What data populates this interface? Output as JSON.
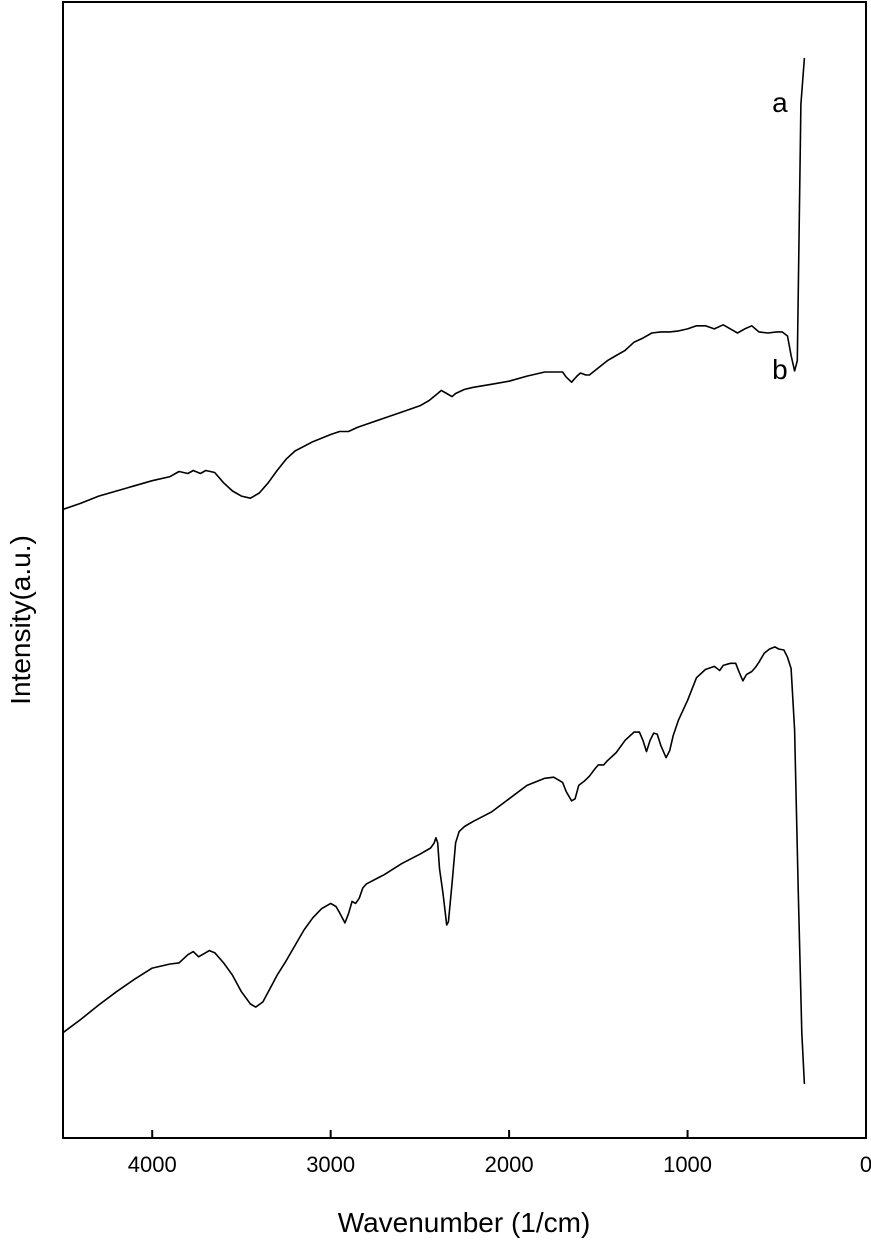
{
  "chart_data": {
    "type": "line",
    "title": "",
    "xlabel": "Wavenumber (1/cm)",
    "ylabel": "Intensity(a.u.)",
    "xlim": [
      4500,
      0
    ],
    "x_reversed": true,
    "ylim": [
      0,
      100
    ],
    "y_ticks_shown": false,
    "grid": false,
    "x_ticks": [
      4000,
      3000,
      2000,
      1000,
      0
    ],
    "x_tick_labels": [
      "4000",
      "3000",
      "2000",
      "1000",
      "0"
    ],
    "series": [
      {
        "name": "a",
        "label_at": [
          470,
          95.5
        ],
        "points": [
          [
            4500,
            56
          ],
          [
            4400,
            56.6
          ],
          [
            4300,
            57.3
          ],
          [
            4200,
            57.8
          ],
          [
            4100,
            58.3
          ],
          [
            4000,
            58.8
          ],
          [
            3900,
            59.2
          ],
          [
            3850,
            59.7
          ],
          [
            3800,
            59.5
          ],
          [
            3770,
            59.8
          ],
          [
            3730,
            59.5
          ],
          [
            3700,
            59.8
          ],
          [
            3650,
            59.6
          ],
          [
            3600,
            58.6
          ],
          [
            3550,
            57.8
          ],
          [
            3500,
            57.3
          ],
          [
            3450,
            57.1
          ],
          [
            3400,
            57.6
          ],
          [
            3350,
            58.6
          ],
          [
            3300,
            59.8
          ],
          [
            3250,
            60.9
          ],
          [
            3200,
            61.7
          ],
          [
            3100,
            62.6
          ],
          [
            3000,
            63.3
          ],
          [
            2950,
            63.6
          ],
          [
            2900,
            63.6
          ],
          [
            2850,
            64
          ],
          [
            2800,
            64.3
          ],
          [
            2700,
            64.9
          ],
          [
            2600,
            65.5
          ],
          [
            2500,
            66.1
          ],
          [
            2450,
            66.6
          ],
          [
            2400,
            67.3
          ],
          [
            2380,
            67.6
          ],
          [
            2350,
            67.3
          ],
          [
            2320,
            67
          ],
          [
            2300,
            67.3
          ],
          [
            2250,
            67.7
          ],
          [
            2200,
            67.9
          ],
          [
            2100,
            68.2
          ],
          [
            2000,
            68.5
          ],
          [
            1900,
            69
          ],
          [
            1800,
            69.4
          ],
          [
            1750,
            69.4
          ],
          [
            1700,
            69.4
          ],
          [
            1680,
            68.9
          ],
          [
            1650,
            68.4
          ],
          [
            1620,
            69
          ],
          [
            1600,
            69.3
          ],
          [
            1570,
            69.1
          ],
          [
            1550,
            69.1
          ],
          [
            1500,
            69.8
          ],
          [
            1450,
            70.5
          ],
          [
            1400,
            71
          ],
          [
            1350,
            71.5
          ],
          [
            1300,
            72.3
          ],
          [
            1250,
            72.7
          ],
          [
            1200,
            73.2
          ],
          [
            1150,
            73.3
          ],
          [
            1100,
            73.3
          ],
          [
            1050,
            73.4
          ],
          [
            1000,
            73.6
          ],
          [
            950,
            73.9
          ],
          [
            900,
            73.9
          ],
          [
            850,
            73.6
          ],
          [
            800,
            74
          ],
          [
            760,
            73.6
          ],
          [
            720,
            73.2
          ],
          [
            680,
            73.6
          ],
          [
            640,
            73.9
          ],
          [
            600,
            73.3
          ],
          [
            550,
            73.2
          ],
          [
            500,
            73.3
          ],
          [
            470,
            73.3
          ],
          [
            440,
            72.9
          ],
          [
            420,
            71
          ],
          [
            400,
            69.5
          ],
          [
            385,
            70.5
          ],
          [
            365,
            95.5
          ],
          [
            345,
            100
          ]
        ]
      },
      {
        "name": "b",
        "label_at": [
          470,
          69.5
        ],
        "points": [
          [
            4500,
            5
          ],
          [
            4400,
            6.3
          ],
          [
            4300,
            7.7
          ],
          [
            4200,
            9
          ],
          [
            4100,
            10.2
          ],
          [
            4000,
            11.3
          ],
          [
            3900,
            11.7
          ],
          [
            3850,
            11.8
          ],
          [
            3800,
            12.6
          ],
          [
            3770,
            12.9
          ],
          [
            3740,
            12.4
          ],
          [
            3710,
            12.7
          ],
          [
            3680,
            13
          ],
          [
            3650,
            12.8
          ],
          [
            3600,
            11.8
          ],
          [
            3550,
            10.6
          ],
          [
            3500,
            9
          ],
          [
            3450,
            7.8
          ],
          [
            3420,
            7.5
          ],
          [
            3380,
            8
          ],
          [
            3340,
            9.3
          ],
          [
            3300,
            10.6
          ],
          [
            3250,
            12
          ],
          [
            3200,
            13.5
          ],
          [
            3150,
            15
          ],
          [
            3100,
            16.2
          ],
          [
            3050,
            17.1
          ],
          [
            3000,
            17.6
          ],
          [
            2970,
            17.3
          ],
          [
            2950,
            16.7
          ],
          [
            2920,
            15.7
          ],
          [
            2900,
            16.6
          ],
          [
            2880,
            17.8
          ],
          [
            2860,
            17.6
          ],
          [
            2840,
            18.1
          ],
          [
            2820,
            19.1
          ],
          [
            2800,
            19.5
          ],
          [
            2700,
            20.4
          ],
          [
            2600,
            21.5
          ],
          [
            2500,
            22.4
          ],
          [
            2440,
            23
          ],
          [
            2420,
            23.5
          ],
          [
            2410,
            24
          ],
          [
            2400,
            23.5
          ],
          [
            2390,
            21
          ],
          [
            2370,
            18.5
          ],
          [
            2350,
            15.5
          ],
          [
            2340,
            15.8
          ],
          [
            2320,
            19.5
          ],
          [
            2300,
            23.5
          ],
          [
            2280,
            24.6
          ],
          [
            2250,
            25.1
          ],
          [
            2200,
            25.6
          ],
          [
            2100,
            26.5
          ],
          [
            2000,
            27.8
          ],
          [
            1900,
            29.1
          ],
          [
            1800,
            29.8
          ],
          [
            1750,
            29.9
          ],
          [
            1700,
            29.4
          ],
          [
            1680,
            28.5
          ],
          [
            1650,
            27.6
          ],
          [
            1630,
            27.8
          ],
          [
            1610,
            29.1
          ],
          [
            1580,
            29.5
          ],
          [
            1550,
            30
          ],
          [
            1520,
            30.7
          ],
          [
            1500,
            31.1
          ],
          [
            1470,
            31.1
          ],
          [
            1450,
            31.5
          ],
          [
            1400,
            32.3
          ],
          [
            1350,
            33.5
          ],
          [
            1300,
            34.3
          ],
          [
            1270,
            34.3
          ],
          [
            1250,
            33.5
          ],
          [
            1230,
            32.4
          ],
          [
            1210,
            33.5
          ],
          [
            1190,
            34.2
          ],
          [
            1170,
            34.1
          ],
          [
            1150,
            33
          ],
          [
            1120,
            31.8
          ],
          [
            1100,
            32.5
          ],
          [
            1080,
            34
          ],
          [
            1050,
            35.5
          ],
          [
            1000,
            37.4
          ],
          [
            950,
            39.6
          ],
          [
            900,
            40.4
          ],
          [
            850,
            40.7
          ],
          [
            820,
            40.3
          ],
          [
            800,
            40.8
          ],
          [
            760,
            41
          ],
          [
            730,
            41
          ],
          [
            710,
            40.1
          ],
          [
            690,
            39.3
          ],
          [
            670,
            39.9
          ],
          [
            640,
            40.2
          ],
          [
            620,
            40.6
          ],
          [
            600,
            41.1
          ],
          [
            570,
            42
          ],
          [
            540,
            42.4
          ],
          [
            510,
            42.6
          ],
          [
            490,
            42.4
          ],
          [
            460,
            42.3
          ],
          [
            440,
            41.6
          ],
          [
            420,
            40.5
          ],
          [
            400,
            34.5
          ],
          [
            380,
            19
          ],
          [
            360,
            5
          ],
          [
            345,
            0
          ]
        ]
      }
    ]
  }
}
